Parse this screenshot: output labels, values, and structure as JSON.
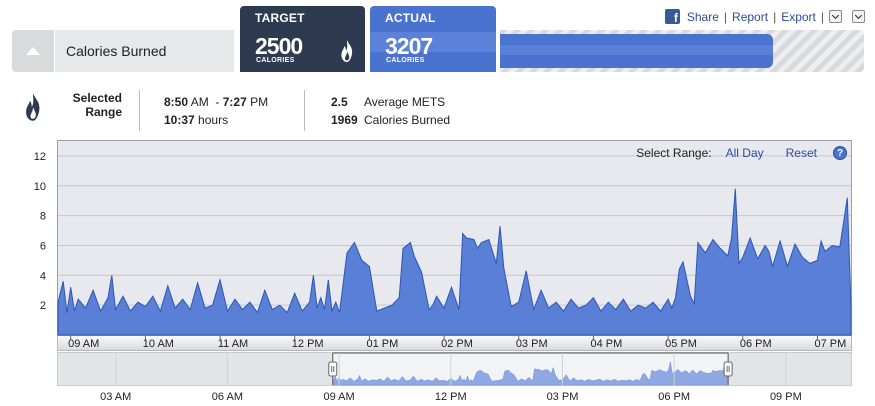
{
  "header": {
    "title": "Calories Burned",
    "target": {
      "label": "TARGET",
      "value": "2500",
      "unit": "CALORIES"
    },
    "actual": {
      "label": "ACTUAL",
      "value": "3207",
      "unit": "CALORIES"
    },
    "progress_fraction": 0.75,
    "links": {
      "share": "Share",
      "report": "Report",
      "export": "Export",
      "sep": "|"
    }
  },
  "selected_range": {
    "label": "Selected Range",
    "start_time": "8:50",
    "start_ampm": "AM",
    "dash": "-",
    "end_time": "7:27",
    "end_ampm": "PM",
    "duration": "10:37",
    "duration_unit": "hours",
    "mets_value": "2.5",
    "mets_label": "Average METS",
    "calories_value": "1969",
    "calories_label": "Calories Burned"
  },
  "range_controls": {
    "label": "Select Range:",
    "all_day": "All Day",
    "reset": "Reset",
    "help": "?"
  },
  "colors": {
    "area_fill": "#5a7fd6",
    "area_stroke": "#2f56b5",
    "navy": "#2d3a4f",
    "accent": "#4a72cf"
  },
  "chart_data": {
    "type": "area",
    "title": "",
    "xlabel": "",
    "ylabel": "",
    "ylim": [
      0,
      13
    ],
    "yticks": [
      2,
      4,
      6,
      8,
      10,
      12
    ],
    "xlim": [
      8.83,
      19.45
    ],
    "xticks": [
      {
        "t": 9,
        "label": "09 AM"
      },
      {
        "t": 10,
        "label": "10 AM"
      },
      {
        "t": 11,
        "label": "11 AM"
      },
      {
        "t": 12,
        "label": "12 PM"
      },
      {
        "t": 13,
        "label": "01 PM"
      },
      {
        "t": 14,
        "label": "02 PM"
      },
      {
        "t": 15,
        "label": "03 PM"
      },
      {
        "t": 16,
        "label": "04 PM"
      },
      {
        "t": 17,
        "label": "05 PM"
      },
      {
        "t": 18,
        "label": "06 PM"
      },
      {
        "t": 19,
        "label": "07 PM"
      }
    ],
    "grid": true,
    "x": [
      8.83,
      8.9,
      8.95,
      9.0,
      9.05,
      9.1,
      9.2,
      9.3,
      9.4,
      9.5,
      9.55,
      9.6,
      9.7,
      9.8,
      9.9,
      10.0,
      10.1,
      10.2,
      10.3,
      10.4,
      10.5,
      10.6,
      10.7,
      10.8,
      10.9,
      11.0,
      11.1,
      11.2,
      11.3,
      11.4,
      11.5,
      11.6,
      11.7,
      11.8,
      11.9,
      12.0,
      12.1,
      12.2,
      12.25,
      12.3,
      12.35,
      12.4,
      12.45,
      12.5,
      12.55,
      12.6,
      12.7,
      12.8,
      12.9,
      13.0,
      13.1,
      13.2,
      13.3,
      13.4,
      13.45,
      13.5,
      13.55,
      13.6,
      13.7,
      13.8,
      13.85,
      13.9,
      14.0,
      14.1,
      14.2,
      14.25,
      14.3,
      14.4,
      14.45,
      14.5,
      14.6,
      14.7,
      14.75,
      14.8,
      14.9,
      15.0,
      15.1,
      15.2,
      15.3,
      15.4,
      15.5,
      15.6,
      15.7,
      15.8,
      15.9,
      16.0,
      16.1,
      16.2,
      16.3,
      16.4,
      16.5,
      16.6,
      16.7,
      16.8,
      16.9,
      17.0,
      17.05,
      17.1,
      17.15,
      17.2,
      17.3,
      17.35,
      17.4,
      17.5,
      17.6,
      17.7,
      17.8,
      17.85,
      17.9,
      17.95,
      18.0,
      18.1,
      18.2,
      18.3,
      18.35,
      18.4,
      18.5,
      18.6,
      18.7,
      18.8,
      18.9,
      19.0,
      19.05,
      19.1,
      19.2,
      19.3,
      19.4,
      19.45
    ],
    "series": [
      {
        "values": [
          2.2,
          3.6,
          1.5,
          3.2,
          1.6,
          2.4,
          1.8,
          3.0,
          1.6,
          2.5,
          4.0,
          1.7,
          2.6,
          1.6,
          2.2,
          1.9,
          2.6,
          1.6,
          3.3,
          1.8,
          2.4,
          1.7,
          3.5,
          1.8,
          2.0,
          3.7,
          1.6,
          2.4,
          1.7,
          2.2,
          1.5,
          3.0,
          1.7,
          2.0,
          1.5,
          2.8,
          1.6,
          2.2,
          4.0,
          1.8,
          2.5,
          1.7,
          3.7,
          1.6,
          2.2,
          1.5,
          5.5,
          6.2,
          5.0,
          4.6,
          1.6,
          1.8,
          2.0,
          2.5,
          5.8,
          6.0,
          6.2,
          5.3,
          4.2,
          1.7,
          2.0,
          2.6,
          1.8,
          3.2,
          1.7,
          6.8,
          6.5,
          6.4,
          5.8,
          6.2,
          6.4,
          4.8,
          7.3,
          4.5,
          1.9,
          2.2,
          4.3,
          1.7,
          3.0,
          1.8,
          2.2,
          1.6,
          2.4,
          1.8,
          2.0,
          2.5,
          1.6,
          2.2,
          1.7,
          2.4,
          1.6,
          2.0,
          1.8,
          2.2,
          1.6,
          2.4,
          1.8,
          2.5,
          4.4,
          4.9,
          2.6,
          2.1,
          6.2,
          5.5,
          6.4,
          5.8,
          5.3,
          6.5,
          9.8,
          4.8,
          5.2,
          6.5,
          5.1,
          6.0,
          5.6,
          4.6,
          6.3,
          4.6,
          6.1,
          5.2,
          4.8,
          5.0,
          6.3,
          5.6,
          6.0,
          5.9,
          9.2,
          2.0
        ]
      }
    ],
    "navigator": {
      "xticks": [
        "03 AM",
        "06 AM",
        "09 AM",
        "12 PM",
        "03 PM",
        "06 PM",
        "09 PM"
      ]
    }
  }
}
